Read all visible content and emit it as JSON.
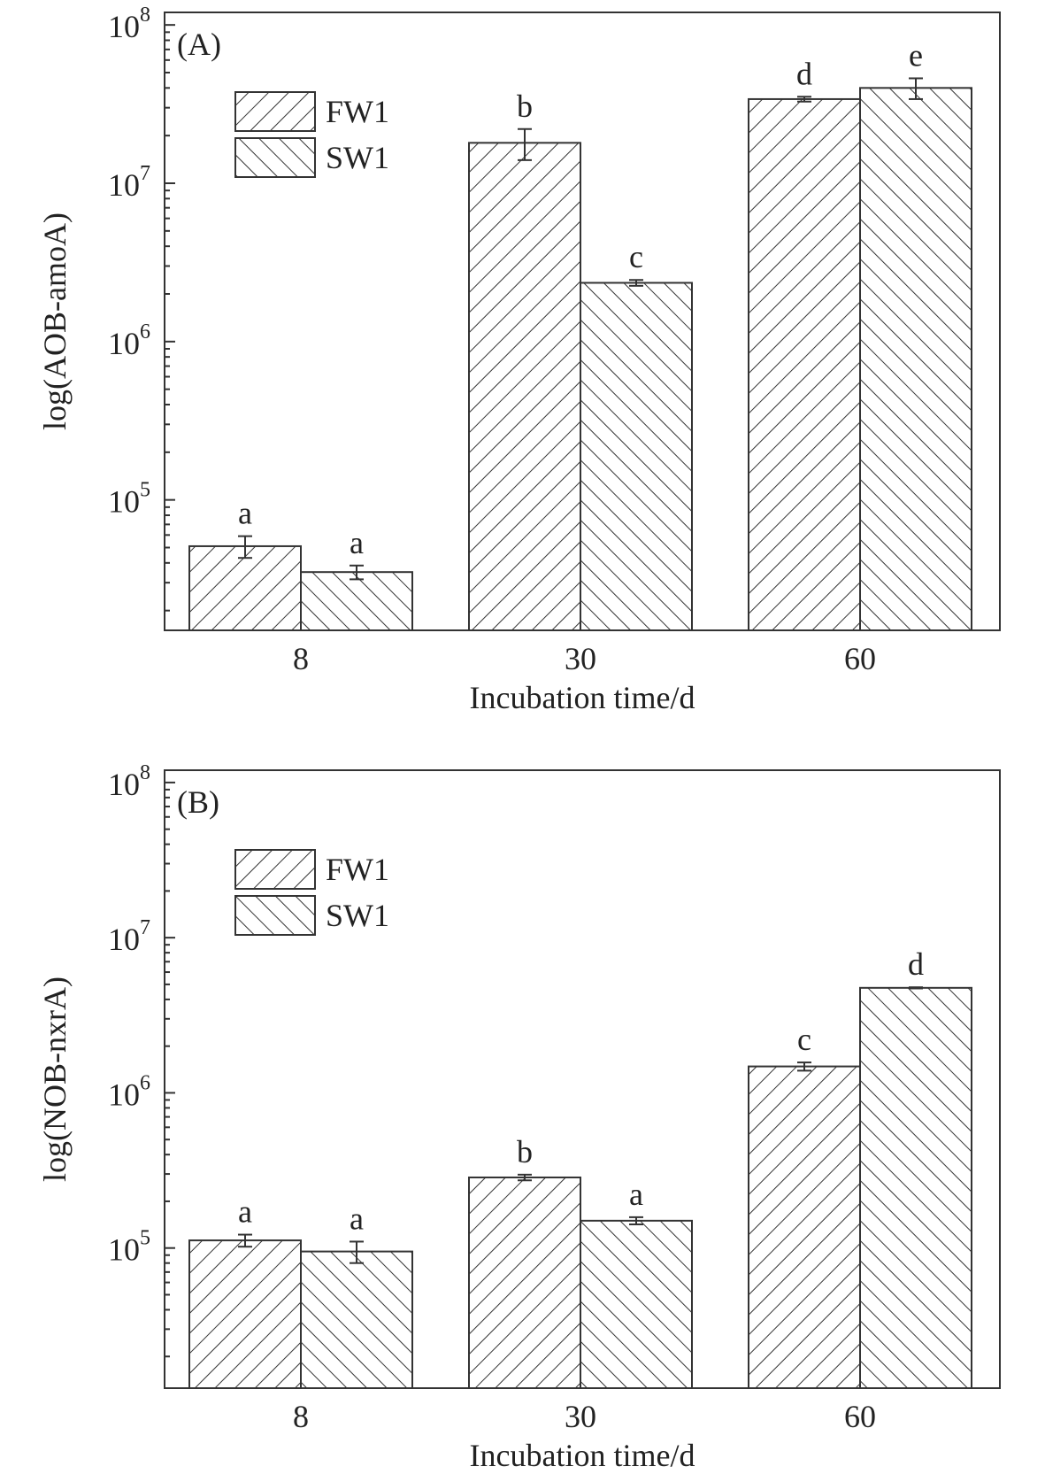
{
  "chart_data": [
    {
      "type": "bar",
      "panel_label": "(A)",
      "ylabel": "log(AOB-amoA)",
      "xlabel": "Incubation time/d",
      "y_scale": "log",
      "ylim": [
        15000,
        120000000
      ],
      "y_ticks": [
        {
          "value": 100000,
          "base": "10",
          "exp": "5"
        },
        {
          "value": 1000000,
          "base": "10",
          "exp": "6"
        },
        {
          "value": 10000000,
          "base": "10",
          "exp": "7"
        },
        {
          "value": 100000000,
          "base": "10",
          "exp": "8"
        }
      ],
      "categories": [
        "8",
        "30",
        "60"
      ],
      "legend": {
        "position": "top-left"
      },
      "series": [
        {
          "name": "FW1",
          "hatch": "forward",
          "values": [
            51000,
            18000000,
            34000000
          ],
          "errors": [
            8000,
            4000000,
            1200000
          ],
          "labels": [
            "a",
            "b",
            "d"
          ]
        },
        {
          "name": "SW1",
          "hatch": "backward",
          "values": [
            35000,
            2350000,
            40000000
          ],
          "errors": [
            3500,
            100000,
            6000000
          ],
          "labels": [
            "a",
            "c",
            "e"
          ]
        }
      ]
    },
    {
      "type": "bar",
      "panel_label": "(B)",
      "ylabel": "log(NOB-nxrA)",
      "xlabel": "Incubation time/d",
      "y_scale": "log",
      "ylim": [
        12500,
        120000000
      ],
      "y_ticks": [
        {
          "value": 100000,
          "base": "10",
          "exp": "5"
        },
        {
          "value": 1000000,
          "base": "10",
          "exp": "6"
        },
        {
          "value": 10000000,
          "base": "10",
          "exp": "7"
        },
        {
          "value": 100000000,
          "base": "10",
          "exp": "8"
        }
      ],
      "categories": [
        "8",
        "30",
        "60"
      ],
      "legend": {
        "position": "top-left"
      },
      "series": [
        {
          "name": "FW1",
          "hatch": "forward",
          "values": [
            112000,
            285000,
            1480000
          ],
          "errors": [
            10000,
            12000,
            90000
          ],
          "labels": [
            "a",
            "b",
            "c"
          ]
        },
        {
          "name": "SW1",
          "hatch": "backward",
          "values": [
            95000,
            150000,
            4750000
          ],
          "errors": [
            15000,
            8000,
            40000
          ],
          "labels": [
            "a",
            "a",
            "d"
          ]
        }
      ]
    }
  ]
}
